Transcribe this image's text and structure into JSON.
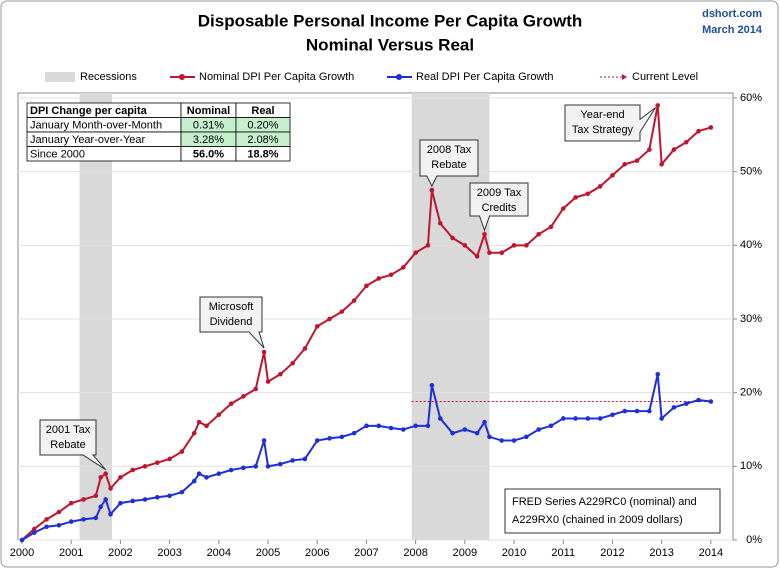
{
  "chart_data": {
    "type": "line",
    "title": "Disposable Personal Income Per Capita Growth",
    "subtitle": "Nominal Versus Real",
    "source": [
      "dshort.com",
      "March 2014"
    ],
    "x": [
      2000,
      2000.25,
      2000.5,
      2000.75,
      2001,
      2001.25,
      2001.5,
      2001.6,
      2001.7,
      2001.8,
      2002,
      2002.25,
      2002.5,
      2002.75,
      2003,
      2003.25,
      2003.5,
      2003.6,
      2003.75,
      2004,
      2004.25,
      2004.5,
      2004.75,
      2004.92,
      2005,
      2005.25,
      2005.5,
      2005.75,
      2006,
      2006.25,
      2006.5,
      2006.75,
      2007,
      2007.25,
      2007.5,
      2007.75,
      2008,
      2008.25,
      2008.33,
      2008.5,
      2008.75,
      2009,
      2009.25,
      2009.4,
      2009.5,
      2009.75,
      2010,
      2010.25,
      2010.5,
      2010.75,
      2011,
      2011.25,
      2011.5,
      2011.75,
      2012,
      2012.25,
      2012.5,
      2012.75,
      2012.92,
      2013,
      2013.25,
      2013.5,
      2013.75,
      2014
    ],
    "series": [
      {
        "name": "Nominal DPI Per Capita Growth",
        "color": "#c0152f",
        "values": [
          0,
          1.5,
          2.8,
          3.8,
          5,
          5.5,
          6,
          8.5,
          9,
          7,
          8.5,
          9.5,
          10,
          10.5,
          11,
          12,
          14.5,
          16,
          15.5,
          17,
          18.5,
          19.5,
          20.5,
          25.5,
          21.5,
          22.5,
          24,
          26,
          29,
          30,
          31,
          32.5,
          34.5,
          35.5,
          36,
          37,
          39,
          40,
          47.5,
          43,
          41,
          40,
          38.5,
          41.5,
          39,
          39,
          40,
          40,
          41.5,
          42.5,
          45,
          46.5,
          47,
          48,
          49.5,
          51,
          51.5,
          53,
          59,
          51,
          53,
          54,
          55.5,
          56
        ]
      },
      {
        "name": "Real DPI Per Capita Growth",
        "color": "#1f2fd8",
        "values": [
          0,
          1,
          1.8,
          2,
          2.5,
          2.8,
          3,
          4.5,
          5.5,
          3.5,
          5,
          5.3,
          5.5,
          5.8,
          6,
          6.5,
          8,
          9,
          8.5,
          9,
          9.5,
          9.8,
          10,
          13.5,
          10,
          10.3,
          10.8,
          11,
          13.5,
          13.8,
          14,
          14.5,
          15.5,
          15.5,
          15.2,
          15,
          15.5,
          15.5,
          21,
          16.5,
          14.5,
          15,
          14.5,
          16,
          14,
          13.5,
          13.5,
          14,
          15,
          15.5,
          16.5,
          16.5,
          16.5,
          16.5,
          17,
          17.5,
          17.5,
          17.5,
          22.5,
          16.5,
          18,
          18.5,
          19,
          18.8
        ]
      }
    ],
    "recessions": {
      "name": "Recessions",
      "color": "#d9d9d9",
      "periods": [
        [
          2001.17,
          2001.83
        ],
        [
          2007.92,
          2009.5
        ]
      ]
    },
    "current_level": {
      "name": "Current Level",
      "color": "#c0152f",
      "value": 18.8
    },
    "xlim": [
      2000,
      2014.45
    ],
    "xticks": [
      2000,
      2001,
      2002,
      2003,
      2004,
      2005,
      2006,
      2007,
      2008,
      2009,
      2010,
      2011,
      2012,
      2013,
      2014
    ],
    "ylim": [
      0,
      60
    ],
    "yticks": [
      {
        "value": 0,
        "label": "0%"
      },
      {
        "value": 10,
        "label": "10%"
      },
      {
        "value": 20,
        "label": "20%"
      },
      {
        "value": 30,
        "label": "30%"
      },
      {
        "value": 40,
        "label": "40%"
      },
      {
        "value": 50,
        "label": "50%"
      },
      {
        "value": 60,
        "label": "60%"
      }
    ],
    "grid": true,
    "annotations": [
      [
        "2001 Tax",
        "Rebate"
      ],
      [
        "Microsoft",
        "Dividend"
      ],
      [
        "2008 Tax",
        "Rebate"
      ],
      [
        "2009 Tax",
        "Credits"
      ],
      [
        "Year-end",
        "Tax Strategy"
      ]
    ],
    "note": [
      "FRED Series A229RC0 (nominal)  and",
      "A229RX0 (chained in 2009 dollars)"
    ],
    "table": {
      "header": [
        "DPI Change per capita",
        "Nominal",
        "Real"
      ],
      "rows": [
        [
          "January Month-over-Month",
          "0.31%",
          "0.20%"
        ],
        [
          "January Year-over-Year",
          "3.28%",
          "2.08%"
        ],
        [
          "Since 2000",
          "56.0%",
          "18.8%"
        ]
      ]
    }
  }
}
